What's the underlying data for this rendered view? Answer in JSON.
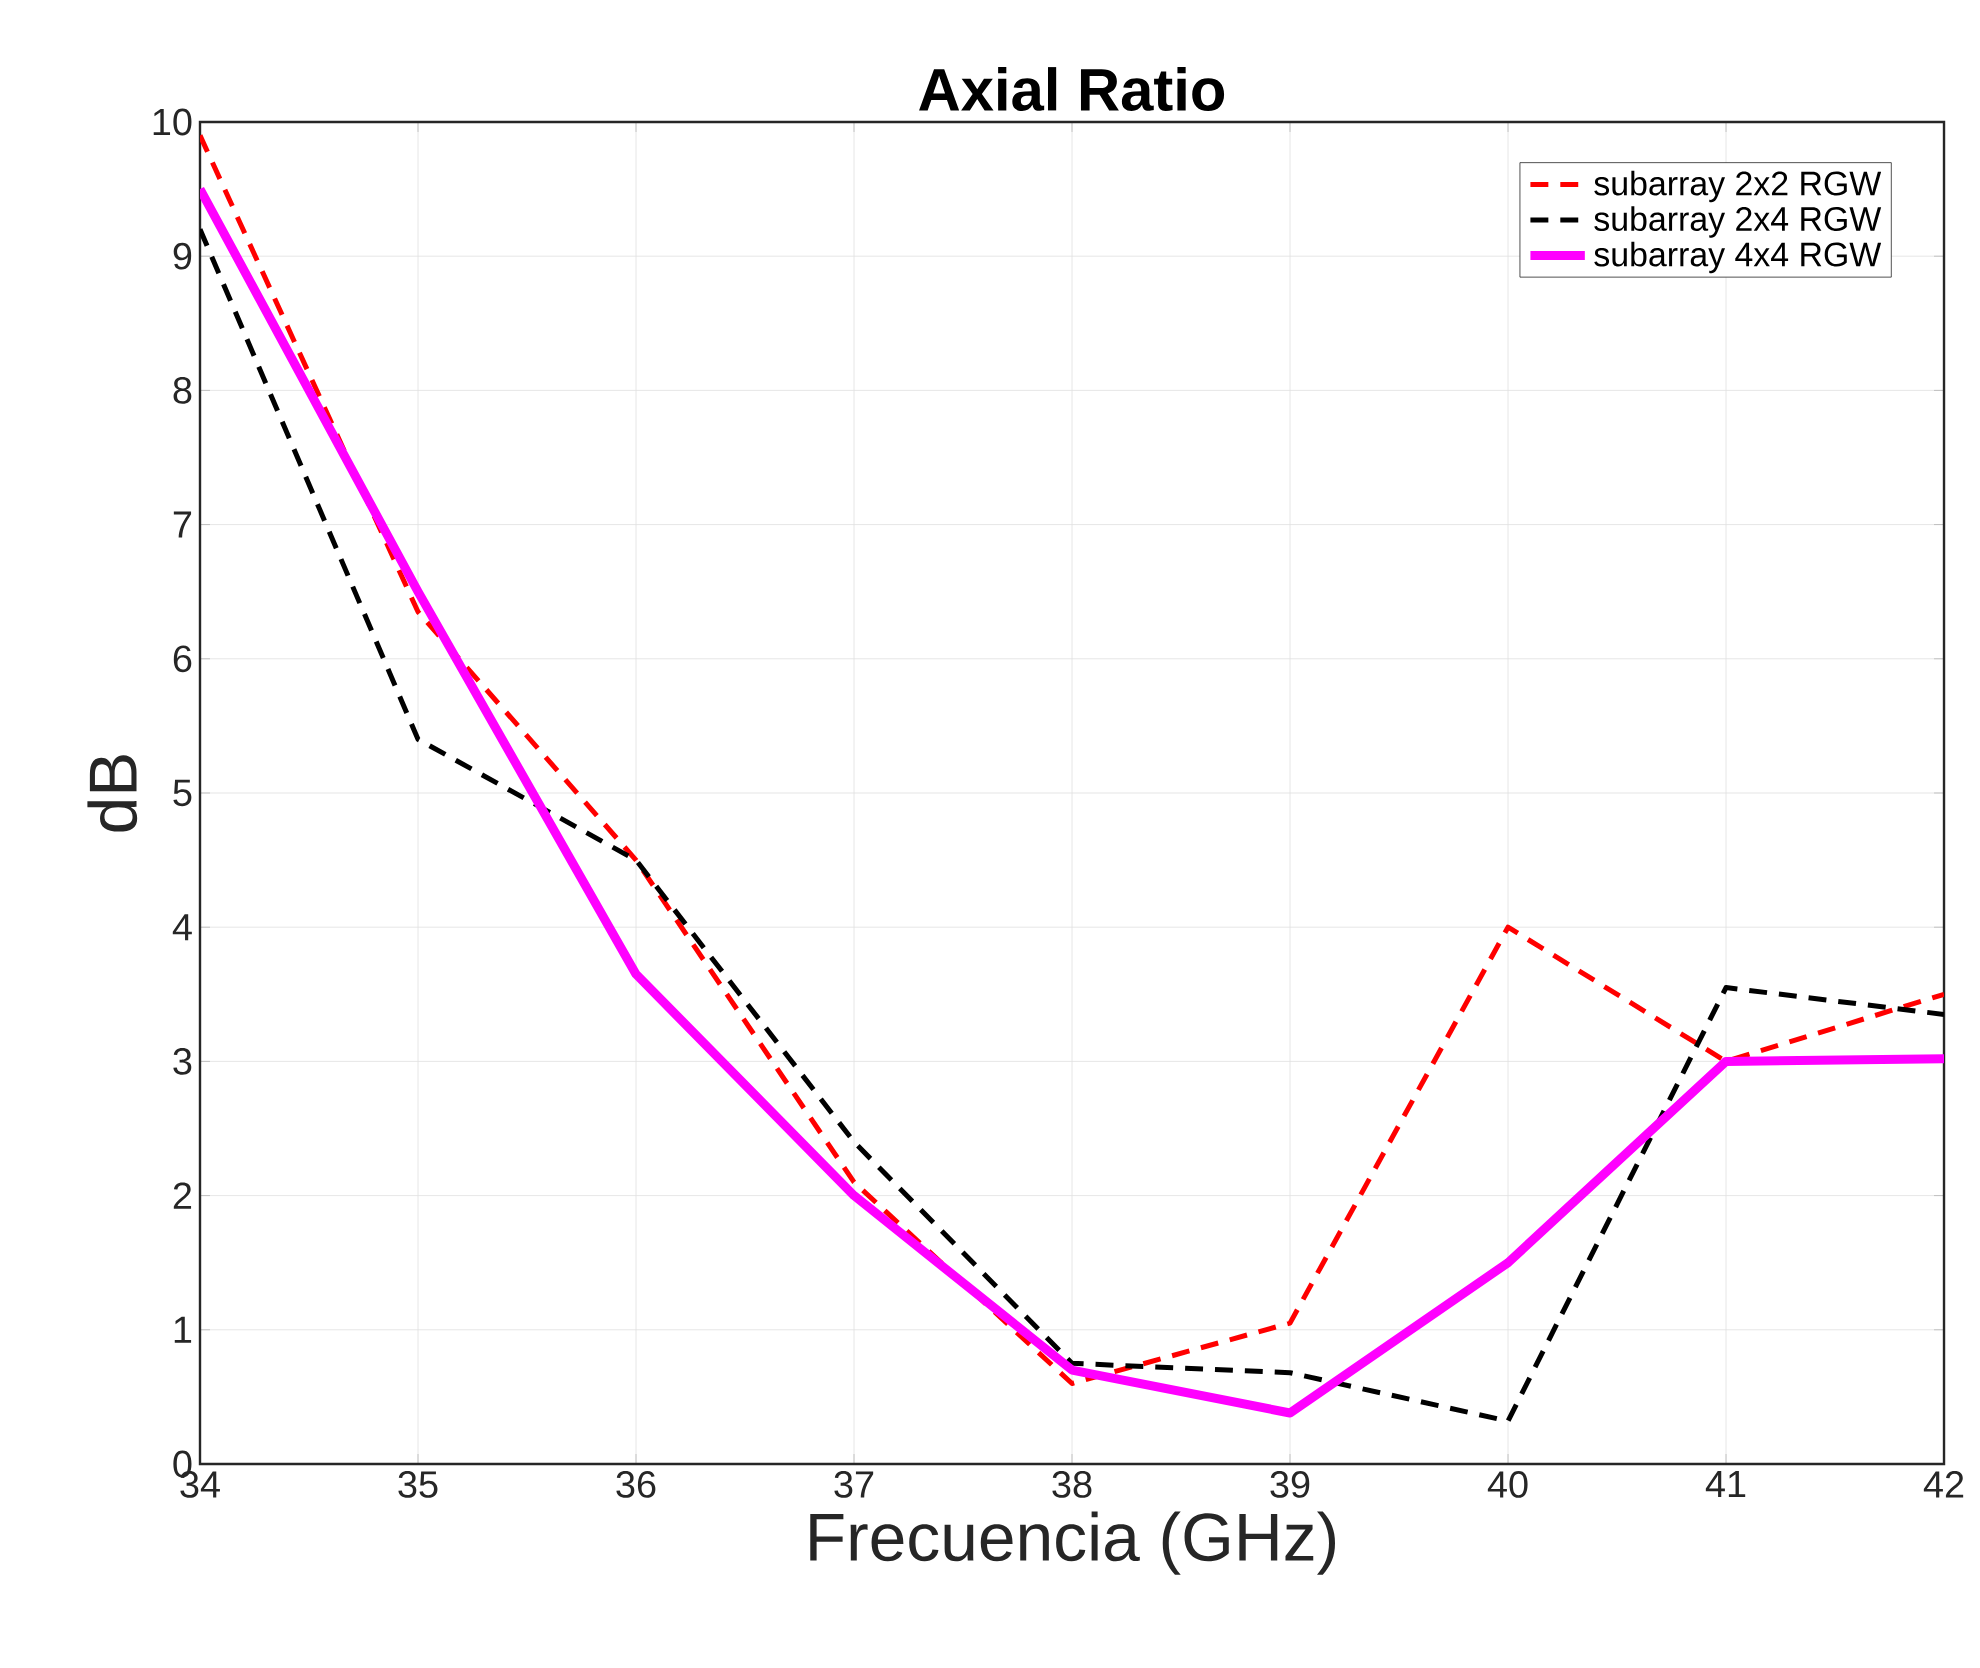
{
  "chart_data": {
    "type": "line",
    "title": "Axial Ratio",
    "xlabel": "Frecuencia (GHz)",
    "ylabel": "dB",
    "x": [
      34,
      35,
      36,
      37,
      38,
      39,
      40,
      41,
      42
    ],
    "series": [
      {
        "name": "subarray 2x2 RGW",
        "color": "#ff0000",
        "line_style": "dashed",
        "values": [
          9.9,
          6.35,
          4.5,
          2.1,
          0.6,
          1.05,
          4.0,
          3.0,
          3.5
        ]
      },
      {
        "name": "subarray 2x4 RGW",
        "color": "#000000",
        "line_style": "dashed",
        "values": [
          9.2,
          5.4,
          4.5,
          2.4,
          0.75,
          0.68,
          0.32,
          3.55,
          3.35
        ]
      },
      {
        "name": "subarray 4x4 RGW",
        "color": "#ff00ff",
        "line_style": "solid",
        "values": [
          9.5,
          6.5,
          3.65,
          2.0,
          0.7,
          0.38,
          1.5,
          3.0,
          3.02
        ]
      }
    ],
    "xlim": [
      34,
      42
    ],
    "ylim": [
      0,
      10
    ],
    "xticks": [
      34,
      35,
      36,
      37,
      38,
      39,
      40,
      41,
      42
    ],
    "yticks": [
      0,
      1,
      2,
      3,
      4,
      5,
      6,
      7,
      8,
      9,
      10
    ],
    "grid": true,
    "legend": "top right",
    "marker": "none"
  }
}
